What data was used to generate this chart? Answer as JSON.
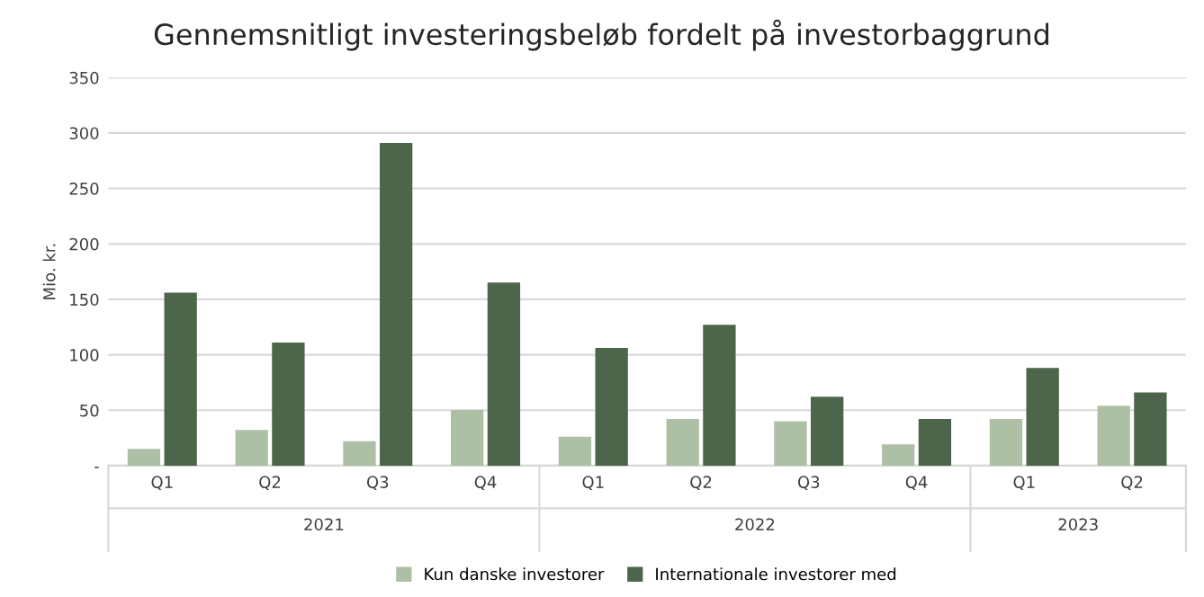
{
  "chart_data": {
    "type": "bar",
    "title": "Gennemsnitligt investeringsbeløb fordelt på investorbaggrund",
    "ylabel": "Mio. kr.",
    "categories": [
      "Q1",
      "Q2",
      "Q3",
      "Q4",
      "Q1",
      "Q2",
      "Q3",
      "Q4",
      "Q1",
      "Q2"
    ],
    "series": [
      {
        "name": "Kun danske investorer",
        "color": "#adc0a6",
        "values": [
          14,
          31,
          21,
          49,
          25,
          41,
          39,
          18,
          41,
          53
        ]
      },
      {
        "name": "Internationale investorer med",
        "color": "#4d654a",
        "values": [
          155,
          110,
          290,
          164,
          105,
          126,
          61,
          41,
          87,
          65
        ]
      }
    ],
    "annotations": [
      "2021",
      "2022",
      "2023"
    ],
    "ylim": [
      0,
      350
    ],
    "yticks": [
      {
        "value": 0,
        "label": "-"
      },
      50,
      100,
      150,
      200,
      250,
      300,
      350
    ],
    "grid": "y",
    "legend": "bottom"
  }
}
